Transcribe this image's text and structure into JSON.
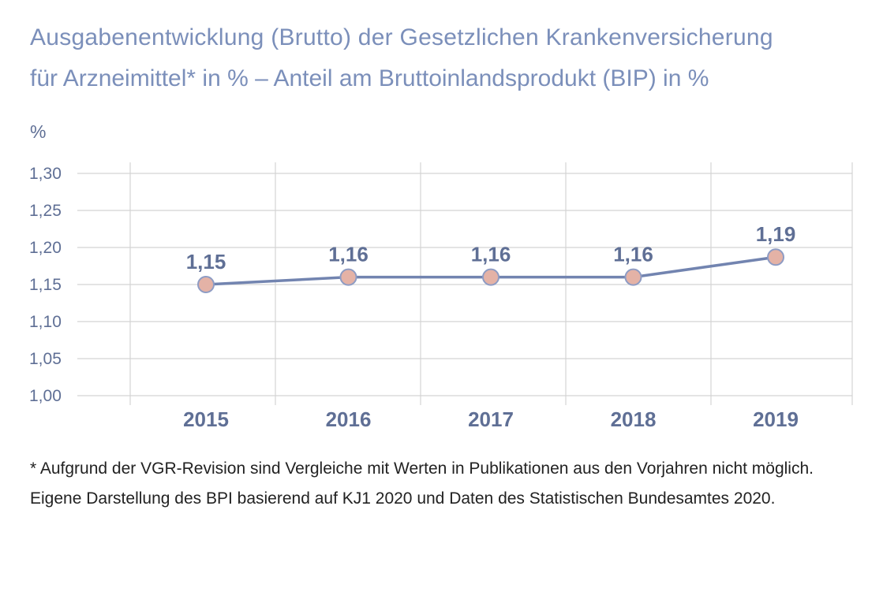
{
  "title_line1": "Ausgabenentwicklung (Brutto) der Gesetzlichen Krankenversicherung",
  "title_line2": "für Arzneimittel* in % – Anteil am Bruttoinlandsprodukt (BIP) in %",
  "footnote": "* Aufgrund der VGR-Revision sind Vergleiche mit Werten in Publikationen aus den Vorjahren nicht möglich.",
  "source": "Eigene Darstellung des BPI basierend auf KJ1 2020 und Daten des Statistischen Bundesamtes 2020.",
  "colors": {
    "line": "#7284b0",
    "marker_fill": "#e4b2a6",
    "marker_stroke": "#8e9cc4",
    "grid": "#d4d4d4",
    "text": "#5f6f95"
  },
  "chart_data": {
    "type": "line",
    "title": "Ausgabenentwicklung (Brutto) der Gesetzlichen Krankenversicherung für Arzneimittel* in % – Anteil am Bruttoinlandsprodukt (BIP) in %",
    "ylabel": "%",
    "xlabel": "",
    "categories": [
      "2015",
      "2016",
      "2017",
      "2018",
      "2019"
    ],
    "values": [
      1.15,
      1.16,
      1.16,
      1.16,
      1.187
    ],
    "data_labels": [
      "1,15",
      "1,16",
      "1,16",
      "1,16",
      "1,19"
    ],
    "ylim": [
      1.0,
      1.3
    ],
    "yticks": [
      1.0,
      1.05,
      1.1,
      1.15,
      1.2,
      1.25,
      1.3
    ],
    "ytick_labels": [
      "1,00",
      "1,05",
      "1,10",
      "1,15",
      "1,20",
      "1,25",
      "1,30"
    ],
    "grid": true,
    "legend": "none"
  }
}
